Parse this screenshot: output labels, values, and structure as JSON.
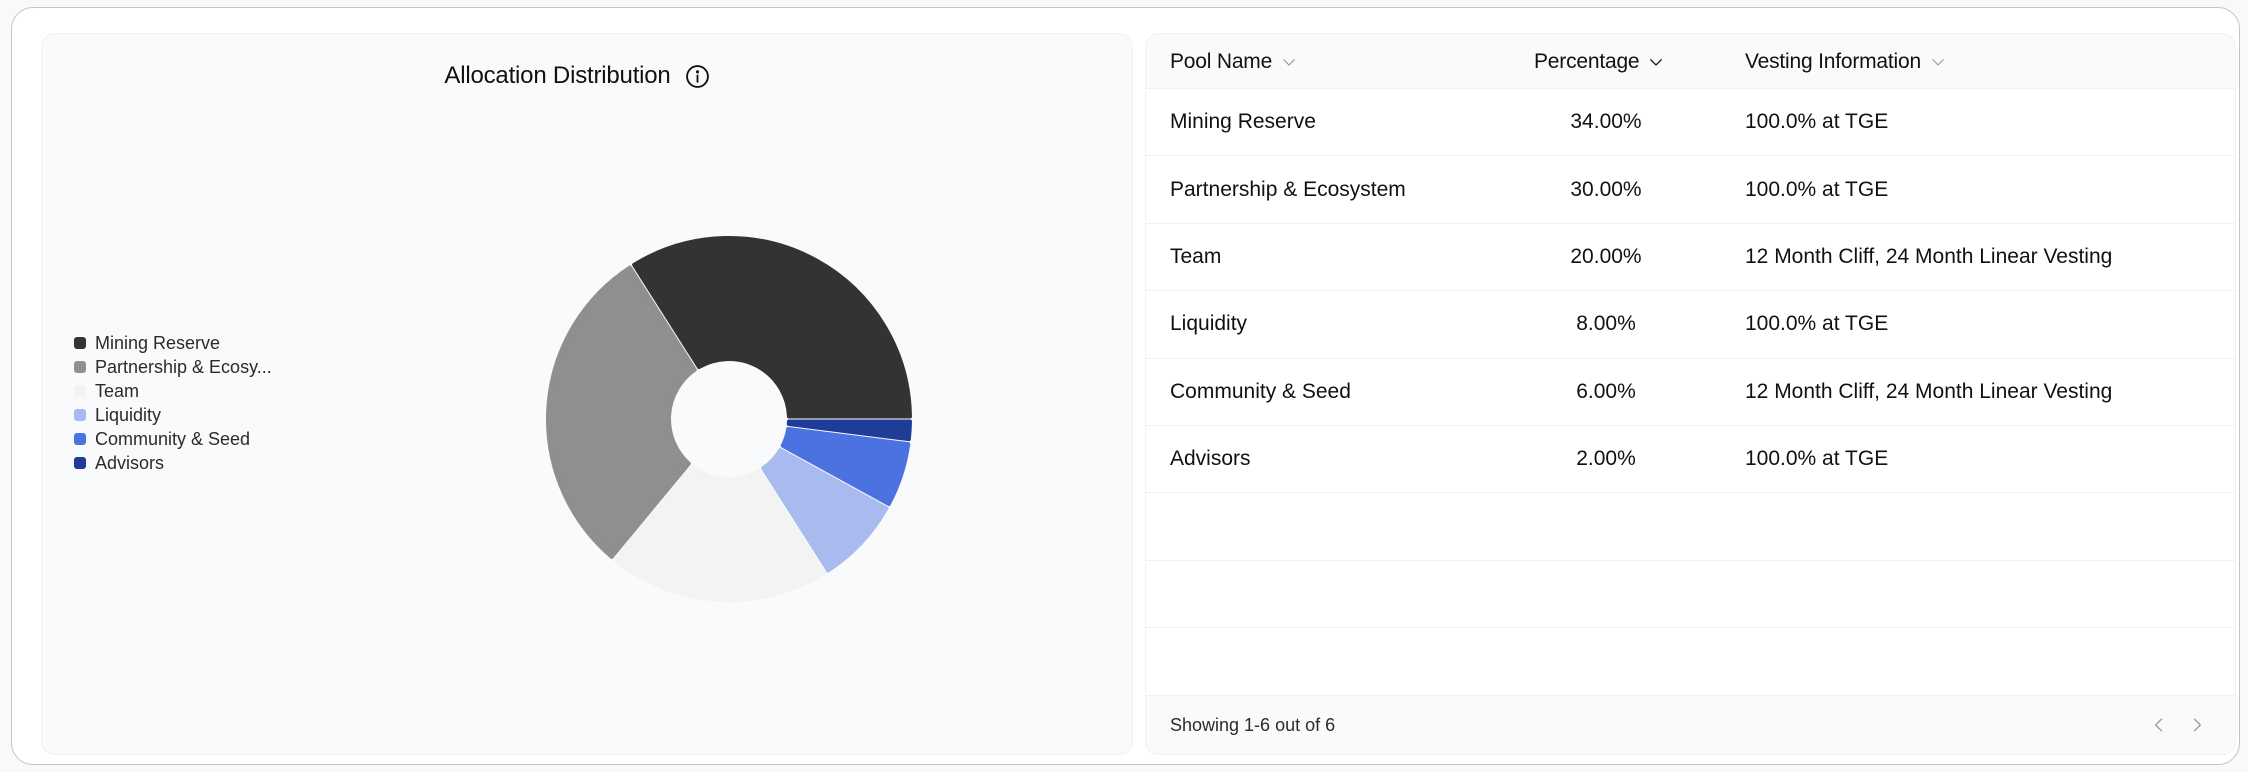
{
  "chart_panel": {
    "title": "Allocation Distribution",
    "info_icon": "info-circle-icon"
  },
  "legend": {
    "items": [
      {
        "label": "Mining Reserve",
        "color": "#333333"
      },
      {
        "label": "Partnership & Ecosy...",
        "color": "#8f8f8f"
      },
      {
        "label": "Team",
        "color": "#f2f3f3"
      },
      {
        "label": "Liquidity",
        "color": "#a9bbee"
      },
      {
        "label": "Community & Seed",
        "color": "#4b72e0"
      },
      {
        "label": "Advisors",
        "color": "#1f3c98"
      }
    ]
  },
  "chart_data": {
    "type": "pie",
    "subtype": "donut",
    "title": "Allocation Distribution",
    "categories": [
      "Mining Reserve",
      "Partnership & Ecosystem",
      "Team",
      "Liquidity",
      "Community & Seed",
      "Advisors"
    ],
    "values": [
      34,
      30,
      20,
      8,
      6,
      2
    ],
    "unit": "%",
    "colors": [
      "#333333",
      "#8f8f8f",
      "#f2f3f3",
      "#a9bbee",
      "#4b72e0",
      "#1f3c98"
    ],
    "legend_position": "left",
    "legend_labels": [
      "Mining Reserve",
      "Partnership & Ecosy...",
      "Team",
      "Liquidity",
      "Community & Seed",
      "Advisors"
    ]
  },
  "table": {
    "columns": [
      {
        "label": "Pool Name",
        "sort_active": false
      },
      {
        "label": "Percentage",
        "sort_active": true
      },
      {
        "label": "Vesting Information",
        "sort_active": false
      }
    ],
    "rows": [
      {
        "pool": "Mining Reserve",
        "percentage": "34.00%",
        "vesting": "100.0% at TGE"
      },
      {
        "pool": "Partnership & Ecosystem",
        "percentage": "30.00%",
        "vesting": "100.0% at TGE"
      },
      {
        "pool": "Team",
        "percentage": "20.00%",
        "vesting": "12 Month Cliff, 24 Month Linear Vesting"
      },
      {
        "pool": "Liquidity",
        "percentage": "8.00%",
        "vesting": "100.0% at TGE"
      },
      {
        "pool": "Community & Seed",
        "percentage": "6.00%",
        "vesting": "12 Month Cliff, 24 Month Linear Vesting"
      },
      {
        "pool": "Advisors",
        "percentage": "2.00%",
        "vesting": "100.0% at TGE"
      }
    ],
    "empty_rows": 3,
    "footer": {
      "showing_text": "Showing 1-6 out of 6",
      "prev_icon": "chevron-left-icon",
      "next_icon": "chevron-right-icon"
    }
  }
}
